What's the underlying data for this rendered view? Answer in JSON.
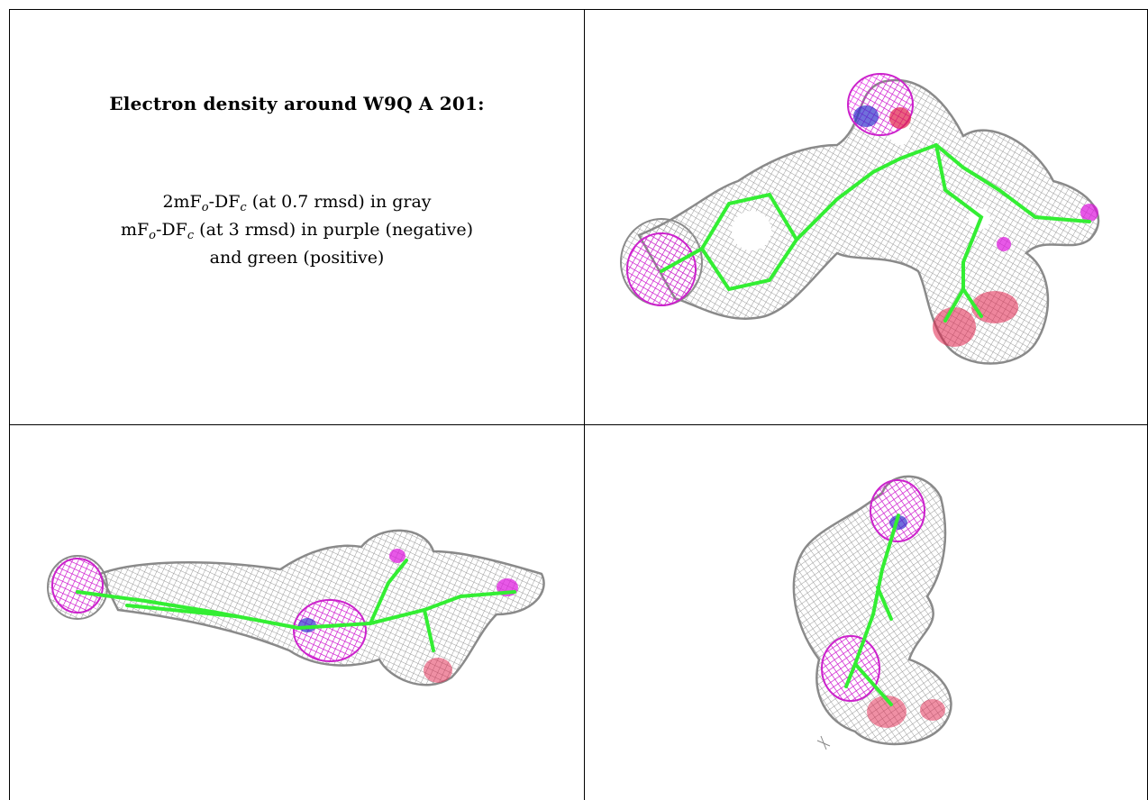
{
  "legend": {
    "title": "Electron density around W9Q A 201:",
    "line1_prefix": "2mF",
    "line1_sub1": "o",
    "line1_mid": "-DF",
    "line1_sub2": "c",
    "line1_suffix": " (at 0.7 rmsd) in gray",
    "line2_prefix": "mF",
    "line2_sub1": "o",
    "line2_mid": "-DF",
    "line2_sub2": "c",
    "line2_suffix": " (at 3 rmsd) in purple (negative)",
    "line3": "and green (positive)"
  },
  "colors": {
    "mesh": "#9a9a9a",
    "bond": "#33ee33",
    "negative": "#dd11dd",
    "oxygen": "#e0204a",
    "nitrogen": "#3333cc",
    "border": "#000000"
  },
  "views": [
    {
      "name": "view-top-right",
      "description_icon": "density-mesh-icon"
    },
    {
      "name": "view-bottom-left",
      "description_icon": "density-mesh-icon"
    },
    {
      "name": "view-bottom-right",
      "description_icon": "density-mesh-icon"
    }
  ]
}
